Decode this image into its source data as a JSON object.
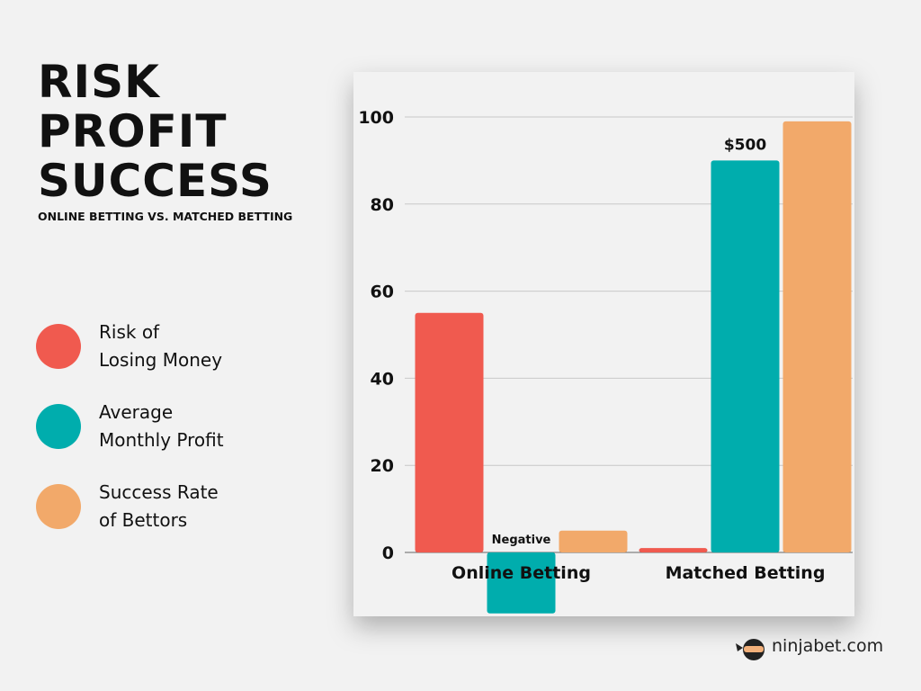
{
  "chart_data": {
    "type": "bar",
    "title": "RISK\nPROFIT\nSUCCESS",
    "subtitle": "ONLINE BETTING VS. MATCHED BETTING",
    "categories": [
      "Online Betting",
      "Matched Betting"
    ],
    "series": [
      {
        "name": "Risk of\nLosing Money",
        "color": "#f05a4f",
        "values": [
          55,
          1
        ]
      },
      {
        "name": "Average\nMonthly Profit",
        "color": "#00adad",
        "values": [
          -14,
          90
        ]
      },
      {
        "name": "Success Rate\nof Bettors",
        "color": "#f2a96a",
        "values": [
          5,
          99
        ]
      }
    ],
    "annotations": [
      "Negative",
      "$500"
    ],
    "ylim": [
      -15,
      100
    ],
    "yticks": [
      0,
      20,
      40,
      60,
      80,
      100
    ],
    "grid": true,
    "brand": "ninjabet.com"
  }
}
